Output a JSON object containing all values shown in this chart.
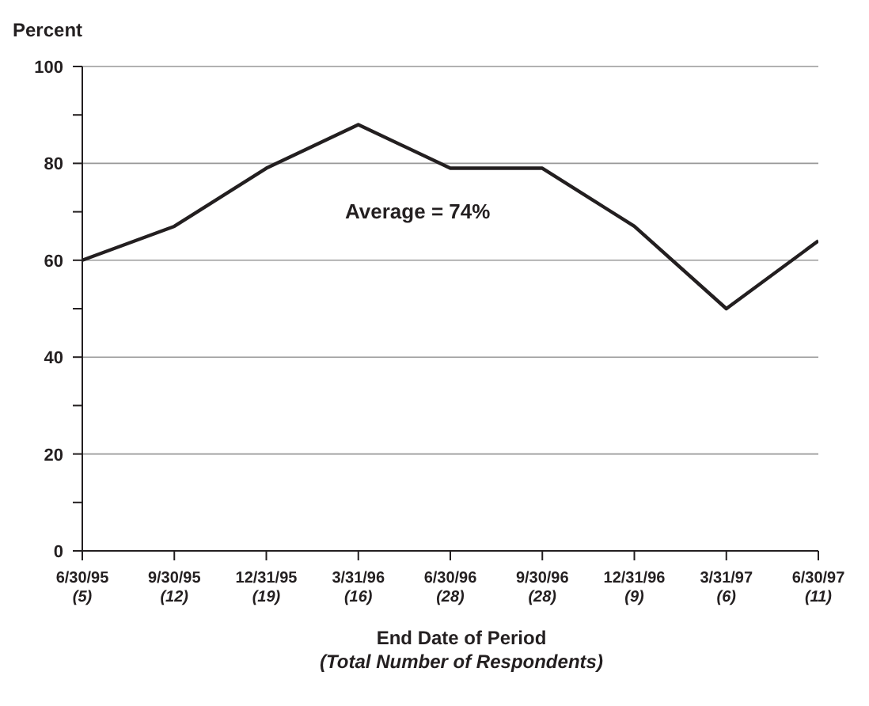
{
  "chart_data": {
    "type": "line",
    "ylabel": "Percent",
    "xlabel": "End Date of Period\n(Total Number of Respondents)",
    "categories": [
      "6/30/95\n(5)",
      "9/30/95\n(12)",
      "12/31/95\n(19)",
      "3/31/96\n(16)",
      "6/30/96\n(28)",
      "9/30/96\n(28)",
      "12/31/96\n(9)",
      "3/31/97\n(6)",
      "6/30/97\n(11)"
    ],
    "series": [
      {
        "color": "#231f20",
        "values": [
          60,
          67,
          79,
          88,
          79,
          79,
          67,
          50,
          64
        ]
      }
    ],
    "ylim": [
      0,
      100
    ],
    "yticks": [
      0,
      {
        "value": 10,
        "label": null
      },
      20,
      {
        "value": 30,
        "label": null
      },
      40,
      {
        "value": 50,
        "label": null
      },
      60,
      {
        "value": 70,
        "label": null
      },
      80,
      {
        "value": 90,
        "label": null
      },
      100
    ],
    "grid": "y",
    "marker": "none",
    "line_style": "solid",
    "legend": false,
    "annotations": [
      "Average = 74%"
    ]
  }
}
